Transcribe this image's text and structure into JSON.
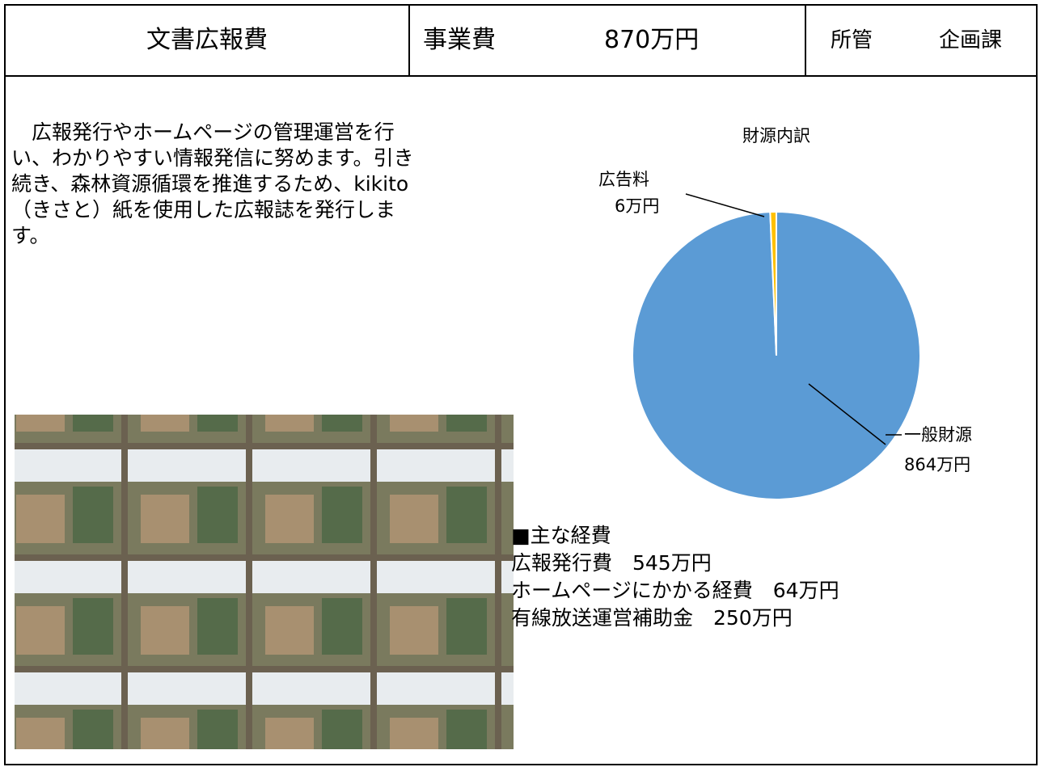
{
  "header": {
    "title": "文書広報費",
    "cost_label": "事業費",
    "cost": "870万円",
    "dept_label": "所管",
    "dept": "企画課"
  },
  "description_lines": [
    "　広報発行やホームページの管理運営を行",
    "い、わかりやすい情報発信に努めます。引き",
    "続き、森林資源循環を推進するため、kikito",
    "（きさと）紙を使用した広報誌を発行しま",
    "す。"
  ],
  "chart_data": {
    "type": "pie",
    "title": "財源内訳",
    "categories": [
      "一般財源",
      "広告料"
    ],
    "values": [
      864,
      6
    ],
    "value_labels": [
      "864万円",
      "6万円"
    ],
    "colors": [
      "#5b9bd5",
      "#ffc000"
    ]
  },
  "expenses": {
    "heading": "■主な経費",
    "items": [
      "広報発行費　545万円",
      "ホームページにかかる経費　64万円",
      "有線放送運営補助金　250万円"
    ]
  }
}
